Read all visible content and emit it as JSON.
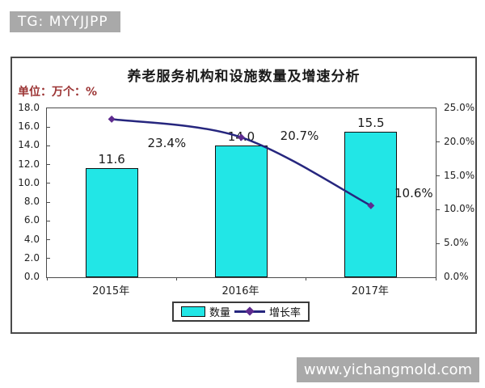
{
  "badge": {
    "text": "TG: MYYJJPP"
  },
  "watermark": {
    "text": "www.yichangmold.com"
  },
  "chart": {
    "title": "养老服务机构和设施数量及增速分析",
    "unit_label": "单位：万个：%",
    "legend_bar_label": "数量",
    "legend_line_label": "增长率"
  },
  "chart_data": {
    "type": "combo",
    "title": "养老服务机构和设施数量及增速分析",
    "categories": [
      "2015年",
      "2016年",
      "2017年"
    ],
    "series": [
      {
        "name": "数量",
        "type": "bar",
        "unit": "万个",
        "axis": "left",
        "values": [
          11.6,
          14.0,
          15.5
        ],
        "data_labels": [
          "11.6",
          "14.0",
          "15.5"
        ],
        "color": "#22e6e6"
      },
      {
        "name": "增长率",
        "type": "line",
        "unit": "%",
        "axis": "right",
        "values": [
          23.4,
          20.7,
          10.6
        ],
        "data_labels": [
          "23.4%",
          "20.7%",
          "10.6%"
        ],
        "color": "#26267e",
        "marker_color": "#5e2b8f",
        "marker": "diamond"
      }
    ],
    "left_axis": {
      "min": 0,
      "max": 18,
      "step": 2,
      "ticks": [
        "18.0",
        "16.0",
        "14.0",
        "12.0",
        "10.0",
        "8.0",
        "6.0",
        "4.0",
        "2.0",
        "0.0"
      ]
    },
    "right_axis": {
      "min": 0,
      "max": 25,
      "step": 5,
      "ticks": [
        "25.0%",
        "20.0%",
        "15.0%",
        "10.0%",
        "5.0%",
        "0.0%"
      ]
    },
    "grid": false,
    "legend_position": "bottom"
  }
}
